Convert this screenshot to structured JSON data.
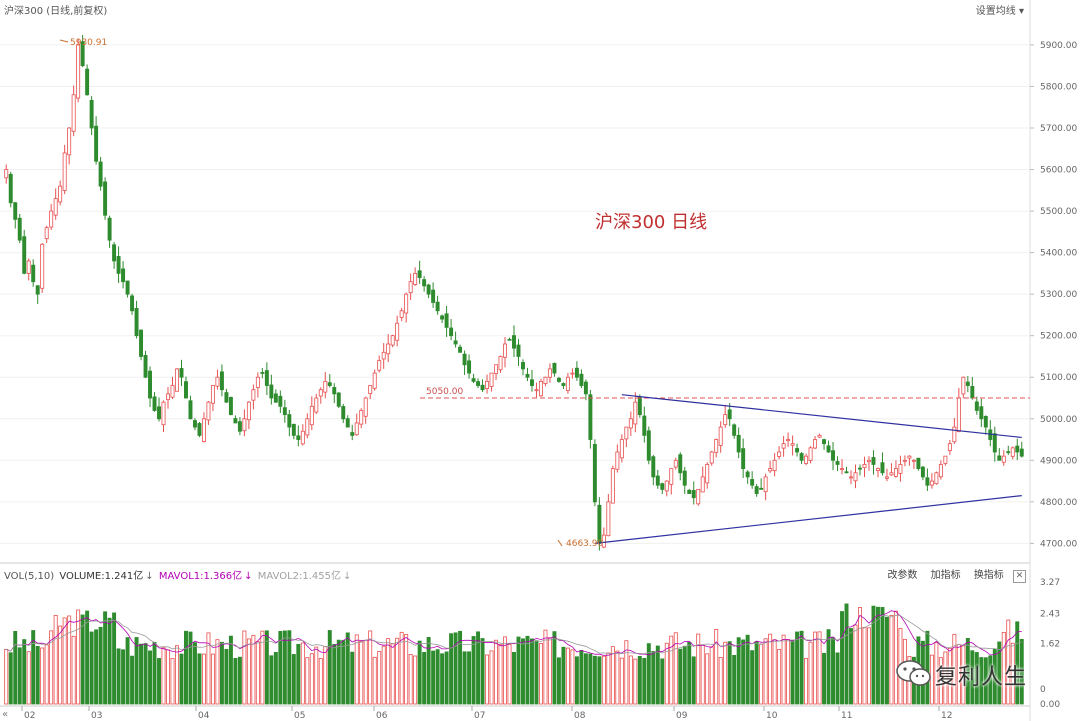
{
  "header": {
    "title": "沪深300 (日线,前复权)",
    "ma_settings": "设置均线 ▾"
  },
  "volume_header": {
    "name": "VOL(5,10)",
    "volume_label": "VOLUME:1.241亿",
    "mavol1_label": "MAVOL1:1.366亿",
    "mavol2_label": "MAVOL2:1.455亿",
    "arrow": "↓",
    "buttons": [
      "改参数",
      "加指标",
      "换指标"
    ],
    "close": "✕"
  },
  "nav": {
    "left": "«"
  },
  "watermark": {
    "text": "复利人生"
  },
  "colors": {
    "up": "#e85050",
    "down": "#2e8b2e",
    "trend": "#3030a0",
    "resistance": "#e05050",
    "mavol1": "#b400b4",
    "mavol2": "#999999"
  },
  "chart_data": {
    "type": "candlestick",
    "title": "沪深300   日线",
    "y_ticks": [
      "5900.00",
      "5800.00",
      "5700.00",
      "5600.00",
      "5500.00",
      "5400.00",
      "5300.00",
      "5200.00",
      "5100.00",
      "5000.00",
      "4900.00",
      "4800.00",
      "4700.00"
    ],
    "ylim": [
      4660,
      5960
    ],
    "x_month_labels": [
      "02",
      "03",
      "04",
      "05",
      "06",
      "07",
      "08",
      "09",
      "10",
      "11",
      "12"
    ],
    "annotations": {
      "high": "5930.91",
      "low": "4663.90",
      "resistance": "5050.00"
    },
    "resistance_level": 5050,
    "trend_upper": [
      [
        "08-04",
        5058
      ],
      [
        "12-01",
        4955
      ]
    ],
    "trend_lower": [
      [
        "07-26",
        4700
      ],
      [
        "12-01",
        4815
      ]
    ],
    "closes": [
      5600,
      5520,
      5480,
      5430,
      5350,
      5380,
      5330,
      5300,
      5420,
      5460,
      5500,
      5530,
      5560,
      5640,
      5700,
      5780,
      5900,
      5850,
      5780,
      5700,
      5620,
      5560,
      5490,
      5430,
      5380,
      5350,
      5330,
      5300,
      5260,
      5200,
      5150,
      5100,
      5050,
      5020,
      5000,
      5040,
      5060,
      5080,
      5120,
      5100,
      5050,
      5000,
      4980,
      4960,
      5000,
      5040,
      5080,
      5100,
      5070,
      5040,
      5010,
      4990,
      4970,
      5000,
      5040,
      5070,
      5100,
      5110,
      5080,
      5050,
      5040,
      5030,
      5010,
      4980,
      4960,
      4950,
      4970,
      5000,
      5030,
      5050,
      5070,
      5090,
      5080,
      5060,
      5030,
      5000,
      4980,
      4960,
      4990,
      5020,
      5050,
      5080,
      5110,
      5140,
      5160,
      5180,
      5200,
      5230,
      5260,
      5300,
      5330,
      5350,
      5340,
      5320,
      5300,
      5280,
      5260,
      5240,
      5220,
      5200,
      5180,
      5160,
      5130,
      5110,
      5090,
      5080,
      5070,
      5090,
      5110,
      5130,
      5150,
      5180,
      5190,
      5170,
      5150,
      5120,
      5100,
      5080,
      5070,
      5090,
      5100,
      5120,
      5110,
      5090,
      5080,
      5100,
      5110,
      5100,
      5080,
      5060,
      4950,
      4800,
      4700,
      4720,
      4800,
      4880,
      4920,
      4950,
      4980,
      5000,
      5040,
      5010,
      4960,
      4900,
      4860,
      4840,
      4830,
      4850,
      4880,
      4900,
      4870,
      4840,
      4820,
      4810,
      4830,
      4860,
      4890,
      4920,
      4950,
      4980,
      5010,
      5000,
      4960,
      4920,
      4880,
      4860,
      4840,
      4820,
      4830,
      4860,
      4880,
      4900,
      4920,
      4940,
      4950,
      4940,
      4920,
      4900,
      4910,
      4930,
      4950,
      4960,
      4940,
      4920,
      4900,
      4890,
      4880,
      4870,
      4860,
      4870,
      4880,
      4890,
      4900,
      4890,
      4880,
      4870,
      4860,
      4870,
      4880,
      4890,
      4900,
      4910,
      4900,
      4880,
      4860,
      4840,
      4850,
      4870,
      4890,
      4910,
      4940,
      4980,
      5050,
      5100,
      5080,
      5050,
      5020,
      5000,
      4980,
      4950,
      4920,
      4900,
      4910,
      4920,
      4930,
      4920,
      4910
    ]
  }
}
